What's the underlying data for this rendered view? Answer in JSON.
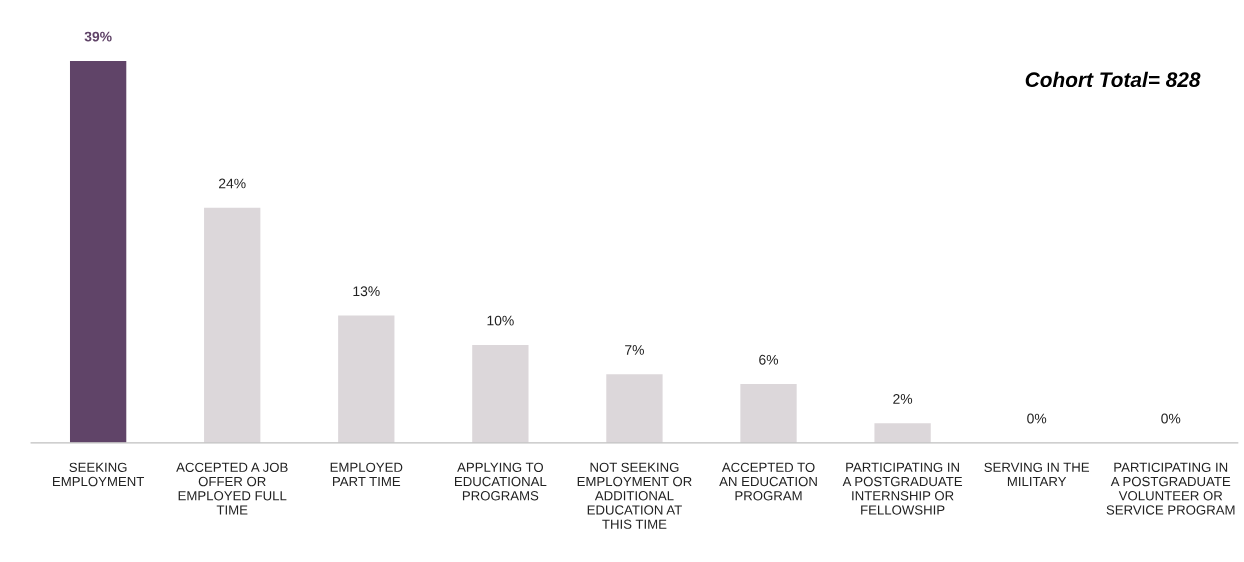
{
  "chart_data": {
    "type": "bar",
    "categories": [
      "SEEKING\nEMPLOYMENT",
      "ACCEPTED A JOB\nOFFER OR\nEMPLOYED FULL\nTIME",
      "EMPLOYED\nPART TIME",
      "APPLYING TO\nEDUCATIONAL\nPROGRAMS",
      "NOT SEEKING\nEMPLOYMENT OR\nADDITIONAL\nEDUCATION AT\nTHIS TIME",
      "ACCEPTED TO\nAN EDUCATION\nPROGRAM",
      "PARTICIPATING IN\nA POSTGRADUATE\nINTERNSHIP OR\nFELLOWSHIP",
      "SERVING IN THE\nMILITARY",
      "PARTICIPATING IN\nA POSTGRADUATE\nVOLUNTEER OR\nSERVICE PROGRAM"
    ],
    "values": [
      39,
      24,
      13,
      10,
      7,
      6,
      2,
      0,
      0
    ],
    "value_labels": [
      "39%",
      "24%",
      "13%",
      "10%",
      "7%",
      "6%",
      "2%",
      "0%",
      "0%"
    ],
    "colors": [
      "#604468",
      "#dcd7da",
      "#dcd7da",
      "#dcd7da",
      "#dcd7da",
      "#dcd7da",
      "#dcd7da",
      "#dcd7da",
      "#dcd7da"
    ],
    "annotations": [
      "Cohort Total= 828"
    ],
    "grid": false,
    "legend": false
  }
}
